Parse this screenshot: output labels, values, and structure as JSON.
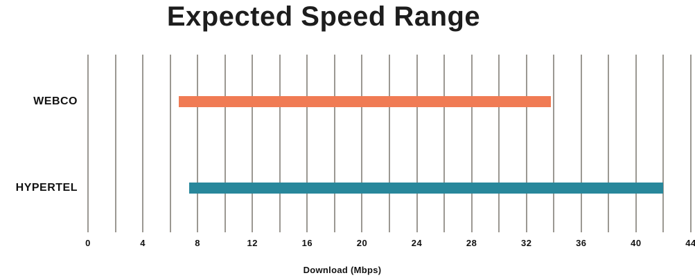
{
  "chart_data": {
    "type": "bar",
    "subtype": "horizontal-range-bars",
    "title": "Expected Speed Range",
    "xlabel": "Download (Mbps)",
    "categories": [
      "WEBCO",
      "HYPERTEL"
    ],
    "series": [
      {
        "name": "Expected speed range",
        "ranges": [
          {
            "category": "WEBCO",
            "min": 6.6,
            "max": 33.8
          },
          {
            "category": "HYPERTEL",
            "min": 7.4,
            "max": 42.0
          }
        ]
      }
    ],
    "bar_colors": [
      "#F07B54",
      "#28879B"
    ],
    "xlim": [
      0,
      44
    ],
    "x_tick_labels": [
      0,
      4,
      8,
      12,
      16,
      20,
      24,
      28,
      32,
      36,
      40,
      44
    ],
    "grid_step": 2,
    "grid": "vertical",
    "legend": "none",
    "gridline_color": "#9B9892",
    "text_color": "#111111",
    "background_color": "#FFFFFF"
  }
}
